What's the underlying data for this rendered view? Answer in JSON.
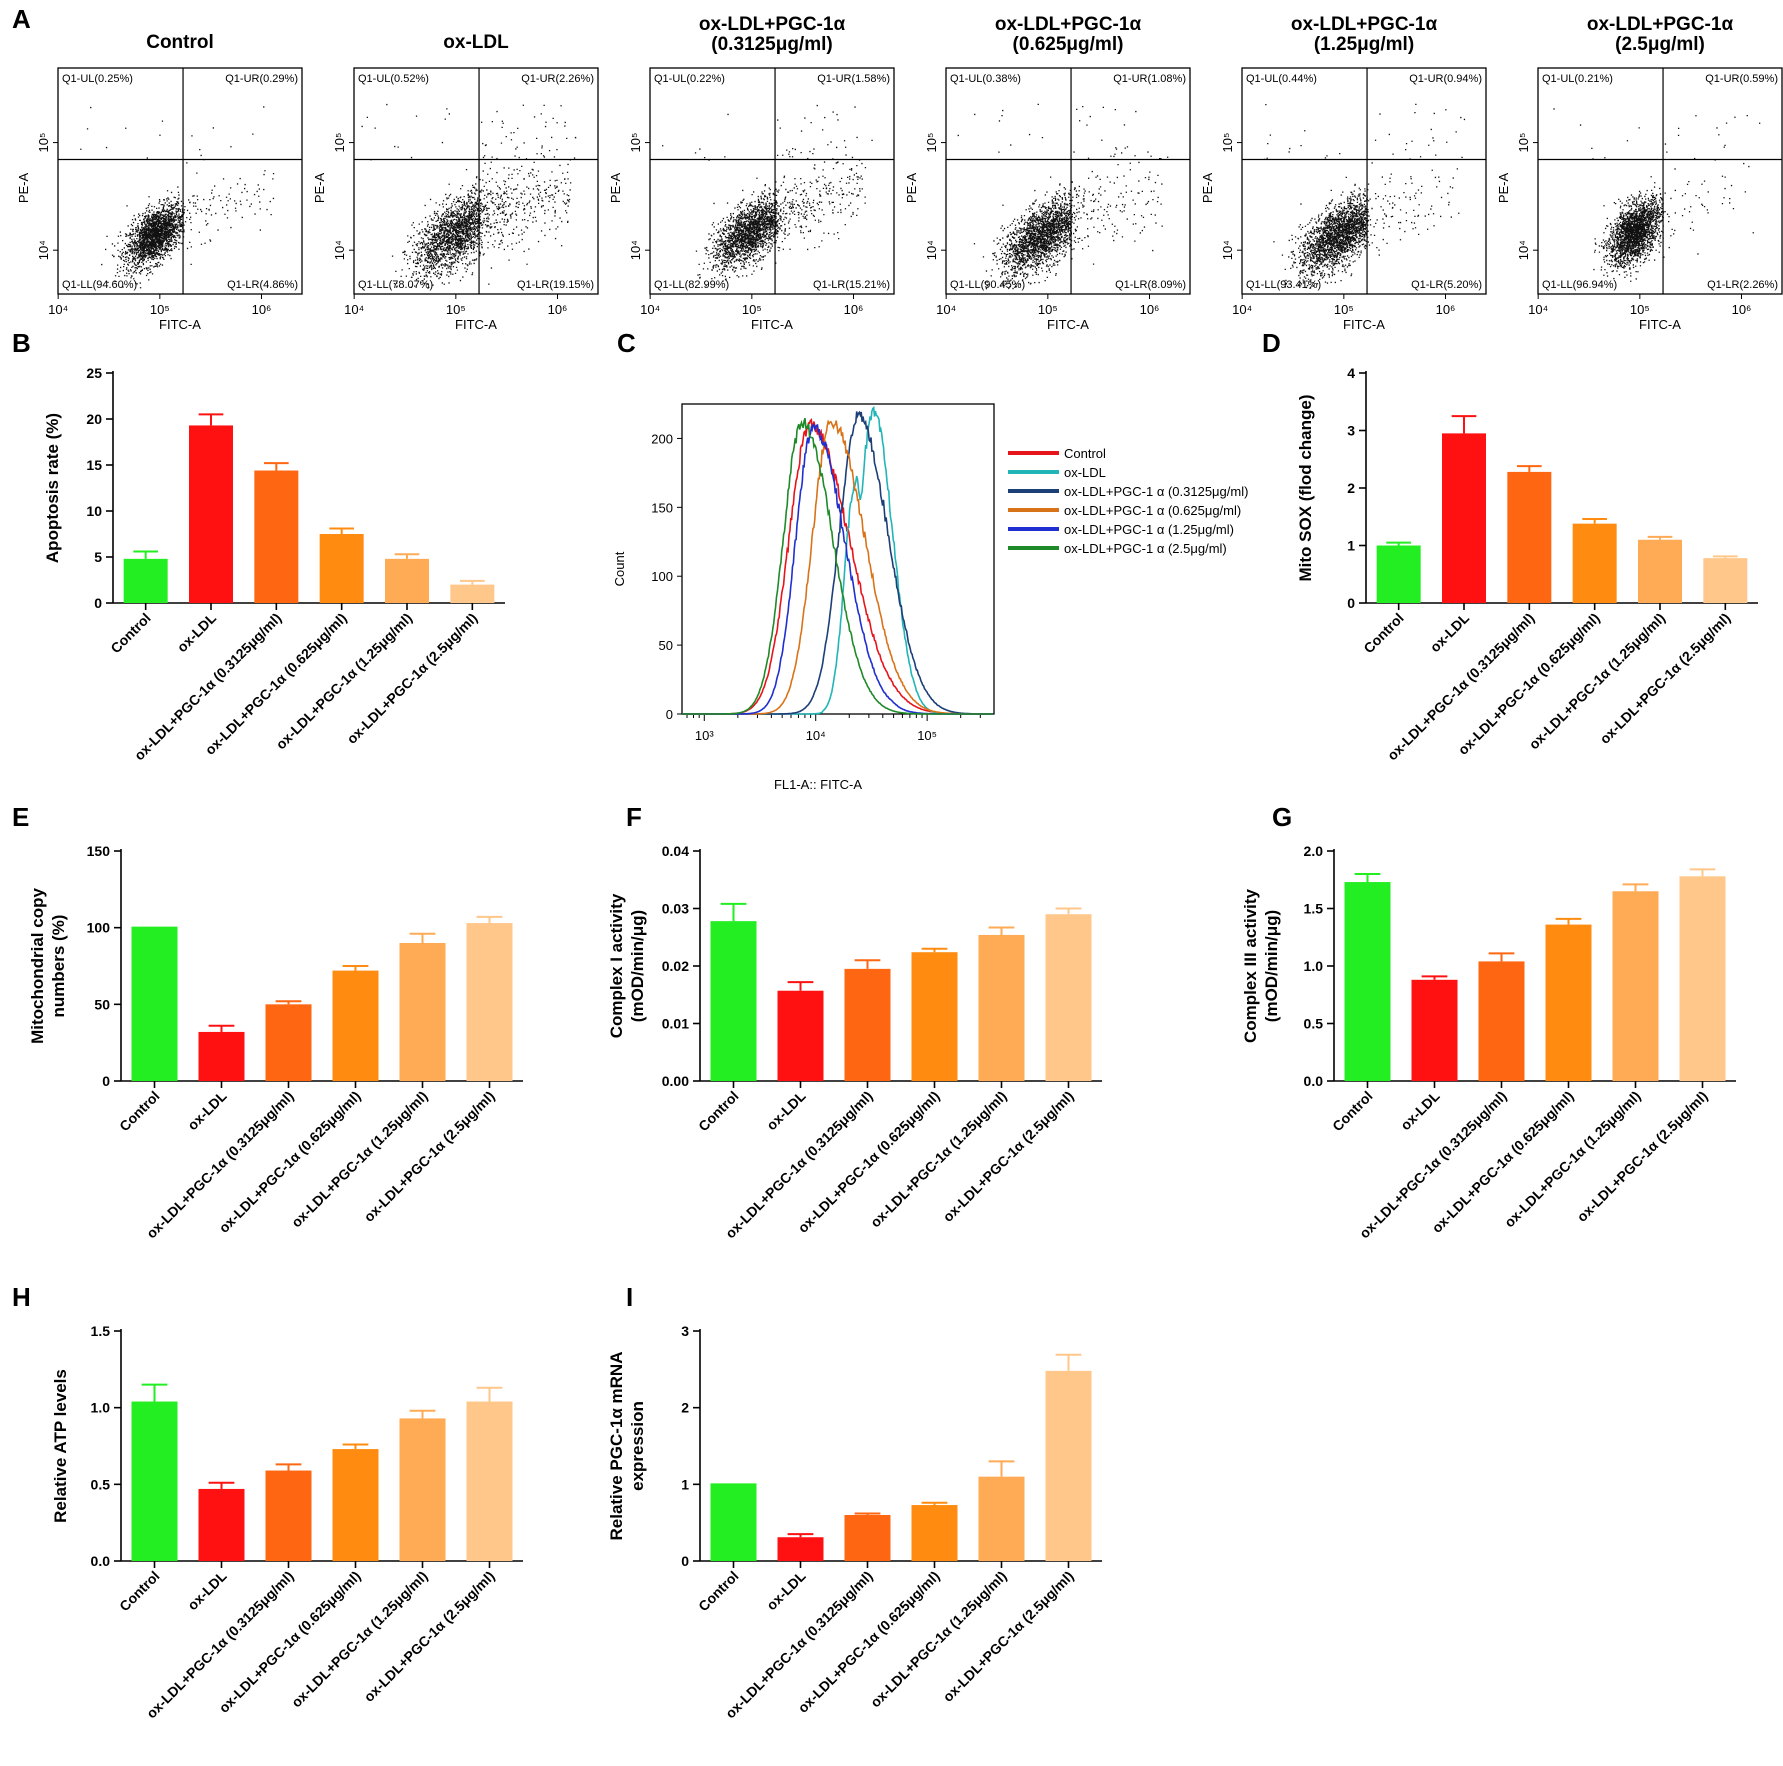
{
  "figure": {
    "panel_labels": [
      "A",
      "B",
      "C",
      "D",
      "E",
      "F",
      "G",
      "H",
      "I"
    ],
    "colors": [
      "#22ee22",
      "#ff1111",
      "#ff6611",
      "#ff8c11",
      "#ffaa55",
      "#ffc78a"
    ],
    "categories": [
      "Control",
      "ox-LDL",
      "ox-LDL+PGC-1α (0.3125μg/ml)",
      "ox-LDL+PGC-1α (0.625μg/ml)",
      "ox-LDL+PGC-1α (1.25μg/ml)",
      "ox-LDL+PGC-1α (2.5μg/ml)"
    ]
  },
  "chart_data": [
    {
      "panel": "A",
      "type": "scatter",
      "xlabel": "FITC-A",
      "ylabel": "PE-A",
      "x_ticks": [
        "10⁴",
        "10⁵",
        "10⁶"
      ],
      "y_ticks": [
        "10⁴",
        "10⁵"
      ],
      "plots": [
        {
          "title": [
            "Control"
          ],
          "UL": "Q1-UL(0.25%)",
          "UR": "Q1-UR(0.29%)",
          "LL": "Q1-LL(94.60%)",
          "LR": "Q1-LR(4.86%)",
          "pct": {
            "UL": 0.25,
            "UR": 0.29,
            "LL": 94.6,
            "LR": 4.86
          }
        },
        {
          "title": [
            "ox-LDL"
          ],
          "UL": "Q1-UL(0.52%)",
          "UR": "Q1-UR(2.26%)",
          "LL": "Q1-LL(78.07%)",
          "LR": "Q1-LR(19.15%)",
          "pct": {
            "UL": 0.52,
            "UR": 2.26,
            "LL": 78.07,
            "LR": 19.15
          }
        },
        {
          "title": [
            "ox-LDL+PGC-1α",
            "(0.3125μg/ml)"
          ],
          "UL": "Q1-UL(0.22%)",
          "UR": "Q1-UR(1.58%)",
          "LL": "Q1-LL(82.99%)",
          "LR": "Q1-LR(15.21%)",
          "pct": {
            "UL": 0.22,
            "UR": 1.58,
            "LL": 82.99,
            "LR": 15.21
          }
        },
        {
          "title": [
            "ox-LDL+PGC-1α",
            "(0.625μg/ml)"
          ],
          "UL": "Q1-UL(0.38%)",
          "UR": "Q1-UR(1.08%)",
          "LL": "Q1-LL(90.45%)",
          "LR": "Q1-LR(8.09%)",
          "pct": {
            "UL": 0.38,
            "UR": 1.08,
            "LL": 90.45,
            "LR": 8.09
          }
        },
        {
          "title": [
            "ox-LDL+PGC-1α",
            "(1.25μg/ml)"
          ],
          "UL": "Q1-UL(0.44%)",
          "UR": "Q1-UR(0.94%)",
          "LL": "Q1-LL(93.41%)",
          "LR": "Q1-LR(5.20%)",
          "pct": {
            "UL": 0.44,
            "UR": 0.94,
            "LL": 93.41,
            "LR": 5.2
          }
        },
        {
          "title": [
            "ox-LDL+PGC-1α",
            "(2.5μg/ml)"
          ],
          "UL": "Q1-UL(0.21%)",
          "UR": "Q1-UR(0.59%)",
          "LL": "Q1-LL(96.94%)",
          "LR": "Q1-LR(2.26%)",
          "pct": {
            "UL": 0.21,
            "UR": 0.59,
            "LL": 96.94,
            "LR": 2.26
          }
        }
      ]
    },
    {
      "panel": "B",
      "type": "bar",
      "ylabel": [
        "Apoptosis rate (%)"
      ],
      "ylim": [
        0,
        25
      ],
      "yticks": [
        0,
        5,
        10,
        15,
        20,
        25
      ],
      "ytick_labels": [
        "0",
        "5",
        "10",
        "15",
        "20",
        "25"
      ],
      "values": [
        4.8,
        19.3,
        14.4,
        7.5,
        4.8,
        2.0
      ],
      "errors": [
        0.8,
        1.2,
        0.8,
        0.6,
        0.5,
        0.4
      ]
    },
    {
      "panel": "C",
      "type": "line",
      "xlabel": "FL1-A:: FITC-A",
      "ylabel": "Count",
      "ylim": [
        0,
        225
      ],
      "yticks": [
        0,
        50,
        100,
        150,
        200
      ],
      "ytick_labels": [
        "0",
        "50",
        "100",
        "150",
        "200"
      ],
      "xlim_log10": [
        2.8,
        5.6
      ],
      "xticks_log10": [
        3,
        4,
        5
      ],
      "xtick_labels": [
        "10³",
        "10⁴",
        "10⁵"
      ],
      "series": [
        {
          "name": "Control",
          "color": "#e8141c",
          "peak_log10": 3.95,
          "peak": 210,
          "width": 0.19,
          "tail": 0.35,
          "secondary": [
            4.55,
            22,
            0.16
          ]
        },
        {
          "name": "ox-LDL",
          "color": "#22b5b8",
          "peak_log10": 4.52,
          "peak": 218,
          "width": 0.14,
          "tail": 0.17,
          "secondary": [
            4.36,
            170,
            0.1
          ]
        },
        {
          "name": "ox-LDL+PGC-1 α (0.3125μg/ml)",
          "color": "#1c3f78",
          "peak_log10": 4.38,
          "peak": 216,
          "width": 0.17,
          "tail": 0.27,
          "secondary": [
            4.6,
            120,
            0.14
          ]
        },
        {
          "name": "ox-LDL+PGC-1 α (0.625μg/ml)",
          "color": "#d9731a",
          "peak_log10": 4.14,
          "peak": 212,
          "width": 0.17,
          "tail": 0.3,
          "secondary": [
            4.55,
            30,
            0.12
          ]
        },
        {
          "name": "ox-LDL+PGC-1 α (1.25μg/ml)",
          "color": "#1f2fd0",
          "peak_log10": 3.98,
          "peak": 208,
          "width": 0.16,
          "tail": 0.28,
          "secondary": [
            4.5,
            20,
            0.15
          ]
        },
        {
          "name": "ox-LDL+PGC-1 α (2.5μg/ml)",
          "color": "#1f8a28",
          "peak_log10": 3.88,
          "peak": 212,
          "width": 0.17,
          "tail": 0.27,
          "secondary": [
            4.4,
            12,
            0.15
          ]
        }
      ]
    },
    {
      "panel": "D",
      "type": "bar",
      "ylabel": [
        "Mito SOX (flod change)"
      ],
      "ylim": [
        0,
        4
      ],
      "yticks": [
        0,
        1,
        2,
        3,
        4
      ],
      "ytick_labels": [
        "0",
        "1",
        "2",
        "3",
        "4"
      ],
      "values": [
        1.0,
        2.95,
        2.28,
        1.38,
        1.1,
        0.78
      ],
      "errors": [
        0.05,
        0.3,
        0.1,
        0.08,
        0.05,
        0.03
      ]
    },
    {
      "panel": "E",
      "type": "bar",
      "ylabel": [
        "Mitochondrial copy",
        "numbers (%)"
      ],
      "ylim": [
        0,
        150
      ],
      "yticks": [
        0,
        50,
        100,
        150
      ],
      "ytick_labels": [
        "0",
        "50",
        "100",
        "150"
      ],
      "values": [
        100,
        32,
        50,
        72,
        90,
        103
      ],
      "errors": [
        0,
        4,
        2,
        3,
        6,
        4
      ]
    },
    {
      "panel": "F",
      "type": "bar",
      "ylabel": [
        "Complex I activity",
        "(mOD/min/μg)"
      ],
      "ylim": [
        0,
        0.04
      ],
      "yticks": [
        0,
        0.01,
        0.02,
        0.03,
        0.04
      ],
      "ytick_labels": [
        "0.00",
        "0.01",
        "0.02",
        "0.03",
        "0.04"
      ],
      "values": [
        0.0278,
        0.0157,
        0.0195,
        0.0224,
        0.0254,
        0.029
      ],
      "errors": [
        0.003,
        0.0015,
        0.0015,
        0.0006,
        0.0013,
        0.001
      ]
    },
    {
      "panel": "G",
      "type": "bar",
      "ylabel": [
        "Complex III activity",
        "(mOD/min/μg)"
      ],
      "ylim": [
        0,
        2.0
      ],
      "yticks": [
        0,
        0.5,
        1.0,
        1.5,
        2.0
      ],
      "ytick_labels": [
        "0.0",
        "0.5",
        "1.0",
        "1.5",
        "2.0"
      ],
      "values": [
        1.73,
        0.88,
        1.04,
        1.36,
        1.65,
        1.78
      ],
      "errors": [
        0.07,
        0.03,
        0.07,
        0.05,
        0.06,
        0.06
      ]
    },
    {
      "panel": "H",
      "type": "bar",
      "ylabel": [
        "Relative ATP levels"
      ],
      "ylim": [
        0,
        1.5
      ],
      "yticks": [
        0,
        0.5,
        1.0,
        1.5
      ],
      "ytick_labels": [
        "0.0",
        "0.5",
        "1.0",
        "1.5"
      ],
      "values": [
        1.04,
        0.47,
        0.59,
        0.73,
        0.93,
        1.04
      ],
      "errors": [
        0.11,
        0.04,
        0.04,
        0.03,
        0.05,
        0.09
      ]
    },
    {
      "panel": "I",
      "type": "bar",
      "ylabel": [
        "Relative PGC-1α mRNA",
        "expression"
      ],
      "ylim": [
        0,
        3
      ],
      "yticks": [
        0,
        1,
        2,
        3
      ],
      "ytick_labels": [
        "0",
        "1",
        "2",
        "3"
      ],
      "values": [
        1.0,
        0.31,
        0.6,
        0.73,
        1.1,
        2.48
      ],
      "errors": [
        0,
        0.04,
        0.02,
        0.03,
        0.2,
        0.21
      ]
    }
  ]
}
